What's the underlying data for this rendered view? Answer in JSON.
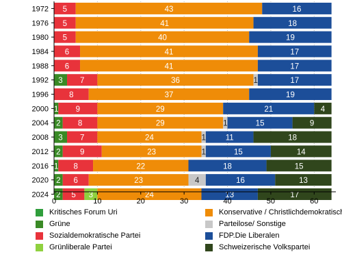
{
  "chart_data": {
    "type": "bar",
    "orientation": "horizontal",
    "stacked": true,
    "categories": [
      "1972",
      "1976",
      "1980",
      "1984",
      "1988",
      "1992",
      "1996",
      "2000",
      "2004",
      "2008",
      "2012",
      "2016",
      "2020",
      "2024"
    ],
    "series": [
      {
        "name": "Kritisches Forum Uri",
        "color": "#2f9e3c",
        "values": [
          0,
          0,
          0,
          0,
          0,
          0,
          0,
          0,
          0,
          0,
          0,
          0,
          0,
          0
        ]
      },
      {
        "name": "Grüne",
        "color": "#3a8a26",
        "values": [
          0,
          0,
          0,
          0,
          0,
          3,
          0,
          1,
          2,
          3,
          2,
          1,
          2,
          2
        ]
      },
      {
        "name": "Sozialdemokratische Partei",
        "color": "#e8333b",
        "values": [
          5,
          5,
          5,
          6,
          6,
          7,
          8,
          9,
          8,
          7,
          9,
          8,
          6,
          5
        ]
      },
      {
        "name": "Grünliberale Partei",
        "color": "#8fd13f",
        "values": [
          0,
          0,
          0,
          0,
          0,
          0,
          0,
          0,
          0,
          0,
          0,
          0,
          0,
          3
        ]
      },
      {
        "name": "Konservative / Christlichdemokratische",
        "color": "#ef8c08",
        "values": [
          43,
          41,
          40,
          41,
          41,
          36,
          37,
          29,
          29,
          24,
          23,
          22,
          23,
          24
        ]
      },
      {
        "name": "Parteilose/ Sonstige",
        "color": "#c8c8c8",
        "values": [
          0,
          0,
          0,
          0,
          0,
          1,
          0,
          0,
          1,
          1,
          1,
          0,
          4,
          0
        ]
      },
      {
        "name": "FDP.Die Liberalen",
        "color": "#1c4e99",
        "values": [
          16,
          18,
          19,
          17,
          17,
          17,
          19,
          21,
          15,
          11,
          15,
          18,
          16,
          13
        ]
      },
      {
        "name": "Schweizerische Volkspartei",
        "color": "#30461c",
        "values": [
          0,
          0,
          0,
          0,
          0,
          0,
          0,
          4,
          9,
          18,
          14,
          15,
          13,
          17
        ]
      }
    ],
    "xlim": [
      0,
      65
    ],
    "xticks": [
      0,
      10,
      20,
      30,
      40,
      50,
      60
    ],
    "grid": true,
    "legend_position": "bottom",
    "title": "",
    "xlabel": "",
    "ylabel": ""
  },
  "legend": {
    "items": [
      {
        "label": "Kritisches Forum Uri",
        "color": "#2f9e3c"
      },
      {
        "label": "Konservative / Christlichdemokratische",
        "color": "#ef8c08"
      },
      {
        "label": "Grüne",
        "color": "#3a8a26"
      },
      {
        "label": "Parteilose/ Sonstige",
        "color": "#c8c8c8"
      },
      {
        "label": "Sozialdemokratische Partei",
        "color": "#e8333b"
      },
      {
        "label": "FDP.Die Liberalen",
        "color": "#1c4e99"
      },
      {
        "label": "Grünliberale Partei",
        "color": "#8fd13f"
      },
      {
        "label": "Schweizerische Volkspartei",
        "color": "#30461c"
      }
    ]
  }
}
